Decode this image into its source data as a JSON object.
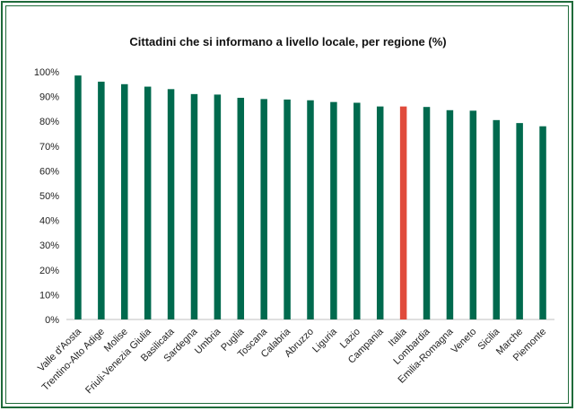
{
  "chart_data": {
    "type": "bar",
    "title": "Cittadini che si informano a livello locale, per regione (%)",
    "xlabel": "",
    "ylabel": "",
    "ylim": [
      0,
      100
    ],
    "y_ticks": [
      "0%",
      "10%",
      "20%",
      "30%",
      "40%",
      "50%",
      "60%",
      "70%",
      "80%",
      "90%",
      "100%"
    ],
    "grid": false,
    "legend": "none",
    "categories": [
      "Valle d'Aosta",
      "Trentino-Alto Adige",
      "Molise",
      "Friuli-Venezia Giulia",
      "Basilicata",
      "Sardegna",
      "Umbria",
      "Puglia",
      "Toscana",
      "Calabria",
      "Abruzzo",
      "Liguria",
      "Lazio",
      "Campania",
      "Italia",
      "Lombardia",
      "Emilia-Romagna",
      "Veneto",
      "Sicilia",
      "Marche",
      "Piemonte"
    ],
    "values": [
      98.5,
      96,
      95,
      94,
      93,
      91,
      90.8,
      89.5,
      89,
      88.8,
      88.5,
      87.8,
      87.5,
      86,
      86,
      85.8,
      84.5,
      84.3,
      80.5,
      79.3,
      78
    ],
    "colors": {
      "default": "#006a4e",
      "highlight": "#e04b3c",
      "highlight_category": "Italia"
    }
  }
}
